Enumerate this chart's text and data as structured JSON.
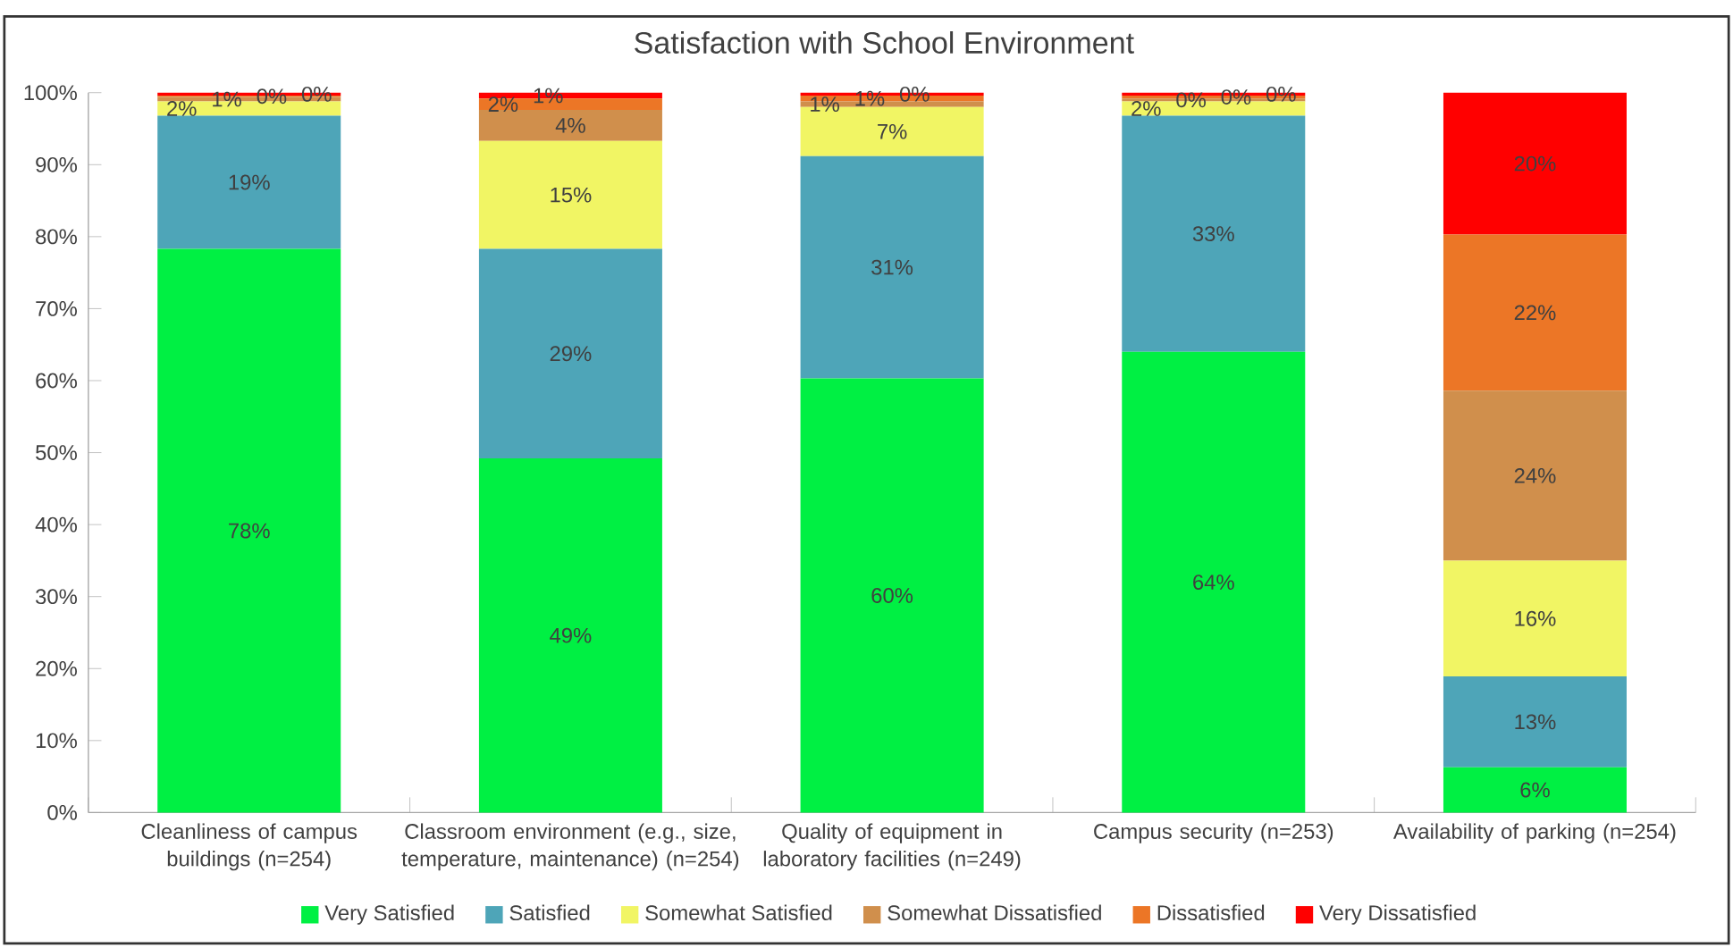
{
  "chart_data": {
    "type": "bar",
    "title": "Satisfaction with School Environment",
    "categories": [
      "Cleanliness of campus buildings (n=254)",
      "Classroom environment (e.g., size, temperature, maintenance) (n=254)",
      "Quality of equipment in laboratory facilities (n=249)",
      "Campus security (n=253)",
      "Availability of parking (n=254)"
    ],
    "stacked": true,
    "series": [
      {
        "name": "Very Satisfied",
        "color": "#00f043",
        "values": [
          78.3,
          49.2,
          60.3,
          64.0,
          6.3
        ],
        "value_labels": [
          "78%",
          "49%",
          "60%",
          "64%",
          "6%"
        ]
      },
      {
        "name": "Satisfied",
        "color": "#4ea5b8",
        "values": [
          18.5,
          29.1,
          30.9,
          32.8,
          12.6
        ],
        "value_labels": [
          "19%",
          "29%",
          "31%",
          "33%",
          "13%"
        ]
      },
      {
        "name": "Somewhat Satisfied",
        "color": "#f1f564",
        "values": [
          2.0,
          15.0,
          6.8,
          2.0,
          16.1
        ],
        "value_labels": [
          "2%",
          "15%",
          "7%",
          "2%",
          "16%"
        ]
      },
      {
        "name": "Somewhat Dissatisfied",
        "color": "#d08f4c",
        "values": [
          0.6,
          4.3,
          0.8,
          0.4,
          23.6
        ],
        "value_labels": [
          "1%",
          "4%",
          "1%",
          "0%",
          "24%"
        ]
      },
      {
        "name": "Dissatisfied",
        "color": "#ec7626",
        "values": [
          0.2,
          1.6,
          0.8,
          0.4,
          21.7
        ],
        "value_labels": [
          "0%",
          "2%",
          "1%",
          "0%",
          "22%"
        ]
      },
      {
        "name": "Very Dissatisfied",
        "color": "#ff0000",
        "values": [
          0.4,
          0.8,
          0.4,
          0.4,
          19.7
        ],
        "value_labels": [
          "0%",
          "1%",
          "0%",
          "0%",
          "20%"
        ]
      }
    ],
    "ylim": [
      0,
      100
    ],
    "yticks": [
      {
        "value": 0,
        "label": "0%"
      },
      {
        "value": 10,
        "label": "10%"
      },
      {
        "value": 20,
        "label": "20%"
      },
      {
        "value": 30,
        "label": "30%"
      },
      {
        "value": 40,
        "label": "40%"
      },
      {
        "value": 50,
        "label": "50%"
      },
      {
        "value": 60,
        "label": "60%"
      },
      {
        "value": 70,
        "label": "70%"
      },
      {
        "value": 80,
        "label": "80%"
      },
      {
        "value": 90,
        "label": "90%"
      },
      {
        "value": 100,
        "label": "100%"
      }
    ],
    "legend": "bottom",
    "grid": false
  }
}
